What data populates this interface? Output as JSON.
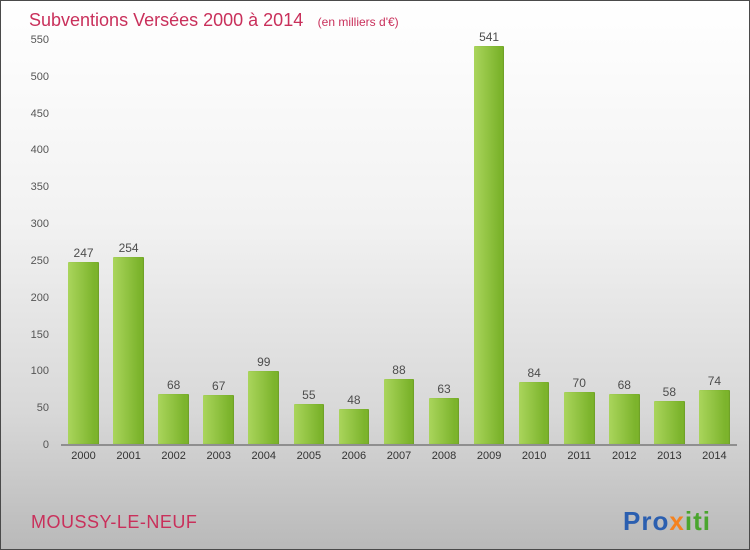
{
  "chart": {
    "title": "Subventions Versées 2000 à 2014",
    "subtitle": "(en milliers d'€)",
    "title_color": "#c9305b",
    "bar_color_light": "#aad55c",
    "bar_color_dark": "#7cb42c",
    "axis_label_color": "#555555"
  },
  "chart_data": {
    "type": "bar",
    "categories": [
      "2000",
      "2001",
      "2002",
      "2003",
      "2004",
      "2005",
      "2006",
      "2007",
      "2008",
      "2009",
      "2010",
      "2011",
      "2012",
      "2013",
      "2014"
    ],
    "values": [
      247,
      254,
      68,
      67,
      99,
      55,
      48,
      88,
      63,
      541,
      84,
      70,
      68,
      58,
      74
    ],
    "title": "Subventions Versées 2000 à 2014",
    "subtitle": "(en milliers d'€)",
    "xlabel": "",
    "ylabel": "",
    "ylim": [
      0,
      550
    ],
    "ytick_step": 50,
    "grid": false,
    "legend": false,
    "value_labels": true
  },
  "footer": {
    "municipality": "MOUSSY-LE-NEUF",
    "municipality_color": "#c9305b",
    "logo_letters": [
      {
        "ch": "P",
        "color": "#2b5fb0"
      },
      {
        "ch": "r",
        "color": "#2b5fb0"
      },
      {
        "ch": "o",
        "color": "#2b5fb0"
      },
      {
        "ch": "x",
        "color": "#f5821f"
      },
      {
        "ch": "i",
        "color": "#4aa52e"
      },
      {
        "ch": "t",
        "color": "#4aa52e"
      },
      {
        "ch": "i",
        "color": "#4aa52e"
      }
    ]
  }
}
